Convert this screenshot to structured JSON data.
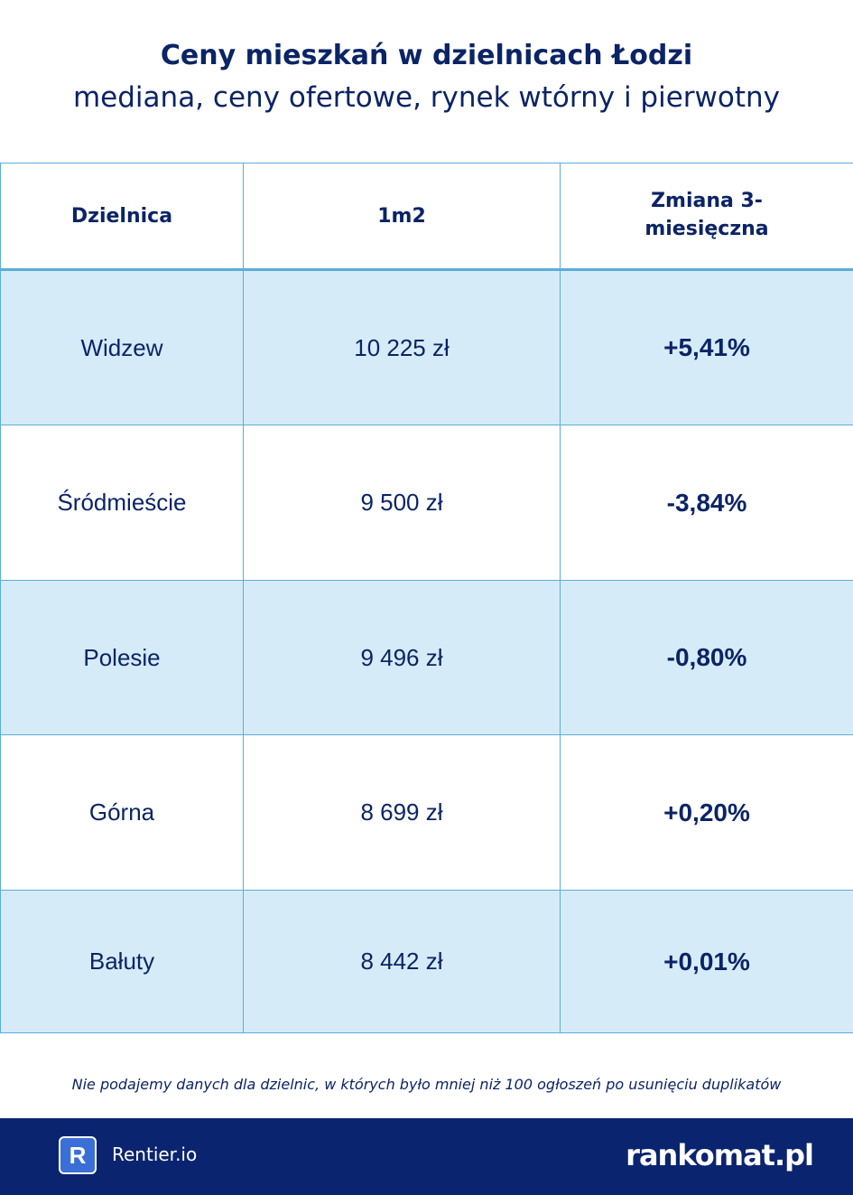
{
  "header": {
    "title": "Ceny mieszkań w dzielnicach Łodzi",
    "subtitle": "mediana, ceny ofertowe, rynek wtórny i pierwotny"
  },
  "table": {
    "columns": [
      "Dzielnica",
      "1m2",
      "Zmiana 3-miesięczna"
    ],
    "rows": [
      [
        "Widzew",
        "10 225 zł",
        "+5,41%"
      ],
      [
        "Śródmieście",
        "9 500 zł",
        "-3,84%"
      ],
      [
        "Polesie",
        "9 496 zł",
        "-0,80%"
      ],
      [
        "Górna",
        "8 699 zł",
        "+0,20%"
      ],
      [
        "Bałuty",
        "8 442 zł",
        "+0,01%"
      ]
    ]
  },
  "footnote": "Nie podajemy danych dla dzielnic, w których było mniej niż 100 ogłoszeń po usunięciu duplikatów",
  "footer": {
    "icon": "R",
    "brand": "Rentier.io",
    "logo": "rankomat.pl"
  }
}
